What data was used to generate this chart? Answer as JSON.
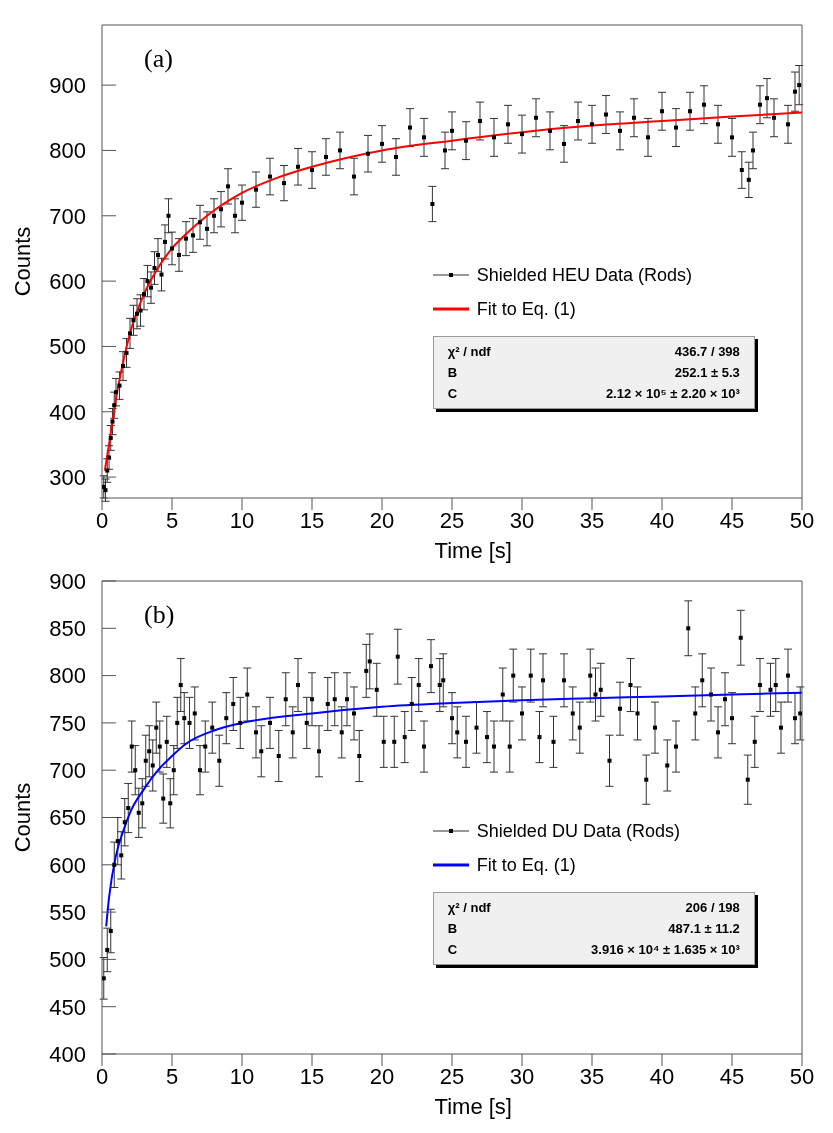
{
  "chart_data": [
    {
      "type": "scatter",
      "xlabel": "Time [s]",
      "ylabel": "Counts",
      "xlim": [
        0,
        50
      ],
      "ylim": [
        268,
        992
      ],
      "xticks": [
        0,
        5,
        10,
        15,
        20,
        25,
        30,
        35,
        40,
        45,
        50
      ],
      "yticks": [
        300,
        400,
        500,
        600,
        700,
        800,
        900
      ],
      "legend": "right",
      "marker": "square",
      "line_style": "solid",
      "annotations": [
        "(a)",
        "χ² / ndf",
        "436.7 / 398",
        "B",
        "252.1 ± 5.3",
        "C",
        "2.12 × 10⁵ ± 2.20 × 10³"
      ],
      "series": [
        {
          "name": "Shielded HEU Data (Rods)",
          "color": "#000000",
          "x": [
            0.125,
            0.25,
            0.375,
            0.5,
            0.625,
            0.75,
            0.875,
            1,
            1.25,
            1.5,
            1.75,
            2,
            2.25,
            2.5,
            2.75,
            3,
            3.25,
            3.5,
            3.75,
            4,
            4.25,
            4.5,
            4.75,
            5,
            5.5,
            6,
            6.5,
            7,
            7.5,
            8,
            8.5,
            9,
            9.5,
            10,
            11,
            12,
            13,
            14,
            15,
            16,
            17,
            18,
            19,
            20,
            21,
            22,
            23,
            23.6,
            24.5,
            25,
            26,
            27,
            28,
            29,
            30,
            31,
            32,
            33,
            34,
            35,
            36,
            37,
            38,
            39,
            40,
            41,
            42,
            43,
            44,
            45,
            45.7,
            46.2,
            46.5,
            47,
            47.5,
            48,
            49,
            49.5,
            49.8
          ],
          "values": [
            285,
            280,
            310,
            330,
            360,
            385,
            410,
            430,
            440,
            470,
            490,
            520,
            540,
            550,
            555,
            580,
            600,
            590,
            620,
            640,
            610,
            660,
            700,
            650,
            640,
            665,
            670,
            690,
            680,
            700,
            710,
            745,
            700,
            720,
            740,
            760,
            750,
            775,
            770,
            790,
            800,
            760,
            795,
            810,
            790,
            835,
            820,
            718,
            800,
            830,
            815,
            845,
            820,
            840,
            825,
            850,
            830,
            810,
            845,
            840,
            855,
            830,
            850,
            820,
            860,
            835,
            860,
            870,
            840,
            820,
            770,
            755,
            800,
            870,
            880,
            850,
            840,
            890,
            900
          ],
          "errors": [
            17,
            17,
            18,
            18,
            19,
            20,
            20,
            21,
            21,
            22,
            22,
            23,
            23,
            23,
            24,
            24,
            24,
            24,
            25,
            25,
            25,
            26,
            26,
            25,
            25,
            26,
            26,
            26,
            26,
            26,
            27,
            27,
            26,
            27,
            27,
            28,
            27,
            28,
            28,
            28,
            28,
            28,
            28,
            28,
            28,
            29,
            29,
            27,
            28,
            29,
            29,
            29,
            29,
            29,
            29,
            29,
            29,
            28,
            29,
            29,
            29,
            29,
            29,
            29,
            29,
            29,
            29,
            29,
            29,
            29,
            28,
            27,
            28,
            29,
            30,
            29,
            29,
            30,
            30
          ]
        },
        {
          "type": "line",
          "marker": "none",
          "name": "Fit to Eq. (1)",
          "color": "#ff0000",
          "x": [
            0.2,
            0.5,
            1,
            1.5,
            2,
            3,
            4,
            5,
            6,
            7.5,
            10,
            12.5,
            15,
            20,
            25,
            30,
            35,
            40,
            45,
            50
          ],
          "values": [
            310,
            350,
            420,
            475,
            520,
            580,
            620,
            650,
            672,
            700,
            735,
            758,
            775,
            800,
            815,
            828,
            838,
            845,
            852,
            858
          ]
        }
      ]
    },
    {
      "type": "scatter",
      "xlabel": "Time [s]",
      "ylabel": "Counts",
      "xlim": [
        0,
        50
      ],
      "ylim": [
        400,
        900
      ],
      "xticks": [
        0,
        5,
        10,
        15,
        20,
        25,
        30,
        35,
        40,
        45,
        50
      ],
      "yticks": [
        400,
        450,
        500,
        550,
        600,
        650,
        700,
        750,
        800,
        850,
        900
      ],
      "legend": "right",
      "marker": "square",
      "line_style": "solid",
      "annotations": [
        "(b)",
        "χ² / ndf",
        "206 / 198",
        "B",
        "487.1 ± 11.2",
        "C",
        "3.916 × 10⁴ ± 1.635 × 10³"
      ],
      "series": [
        {
          "name": "Shielded DU Data (Rods)",
          "color": "#000000",
          "x": [
            0.125,
            0.375,
            0.625,
            0.875,
            1.125,
            1.375,
            1.625,
            1.875,
            2.125,
            2.375,
            2.625,
            2.875,
            3.125,
            3.375,
            3.625,
            3.875,
            4.125,
            4.375,
            4.625,
            4.875,
            5.125,
            5.375,
            5.625,
            5.875,
            6.25,
            6.625,
            7,
            7.375,
            7.875,
            8.375,
            8.875,
            9.375,
            9.875,
            10.375,
            11,
            11.375,
            12,
            12.625,
            13.125,
            13.625,
            14,
            14.625,
            15,
            15.5,
            16.125,
            16.625,
            17.125,
            17.5,
            18,
            18.375,
            18.875,
            19.125,
            19.625,
            20.125,
            20.875,
            21.125,
            21.625,
            22.125,
            22.625,
            23,
            23.5,
            24.125,
            24.375,
            25,
            25.375,
            26,
            26.75,
            27.5,
            28,
            28.625,
            29.125,
            29.375,
            30,
            30.625,
            31.25,
            31.5,
            32.25,
            33,
            33.625,
            34.125,
            34.875,
            35.25,
            35.625,
            36.25,
            37,
            37.75,
            38.25,
            38.875,
            39.5,
            40.375,
            41,
            41.875,
            42.375,
            42.875,
            43.5,
            44,
            44.5,
            45,
            45.625,
            46.125,
            46.625,
            47,
            47.75,
            48.125,
            48.5,
            49,
            49.5,
            49.875
          ],
          "values": [
            480,
            510,
            530,
            600,
            625,
            610,
            645,
            660,
            725,
            700,
            655,
            665,
            710,
            720,
            705,
            745,
            725,
            670,
            730,
            665,
            700,
            750,
            790,
            755,
            750,
            760,
            700,
            725,
            745,
            710,
            755,
            770,
            750,
            780,
            740,
            720,
            750,
            715,
            775,
            740,
            790,
            750,
            775,
            720,
            770,
            775,
            740,
            775,
            760,
            715,
            805,
            815,
            785,
            730,
            730,
            820,
            735,
            770,
            790,
            725,
            810,
            790,
            795,
            755,
            740,
            730,
            745,
            735,
            725,
            780,
            725,
            800,
            760,
            800,
            735,
            795,
            730,
            795,
            760,
            745,
            800,
            780,
            785,
            710,
            765,
            790,
            760,
            690,
            745,
            705,
            725,
            850,
            760,
            795,
            780,
            740,
            775,
            755,
            840,
            690,
            730,
            790,
            785,
            790,
            745,
            800,
            755,
            760
          ],
          "errors": [
            22,
            23,
            23,
            24,
            25,
            25,
            25,
            26,
            27,
            26,
            26,
            26,
            27,
            27,
            27,
            27,
            27,
            26,
            27,
            26,
            26,
            27,
            28,
            27,
            27,
            28,
            26,
            27,
            27,
            27,
            27,
            28,
            27,
            28,
            27,
            27,
            27,
            27,
            28,
            27,
            28,
            27,
            28,
            27,
            28,
            28,
            27,
            28,
            28,
            27,
            28,
            29,
            28,
            27,
            27,
            29,
            27,
            28,
            28,
            27,
            28,
            28,
            28,
            27,
            27,
            27,
            27,
            27,
            27,
            28,
            27,
            28,
            28,
            28,
            27,
            28,
            27,
            28,
            28,
            27,
            28,
            28,
            28,
            27,
            28,
            28,
            28,
            26,
            27,
            27,
            27,
            29,
            28,
            28,
            28,
            27,
            28,
            27,
            29,
            26,
            27,
            28,
            28,
            28,
            27,
            28,
            27,
            28
          ]
        },
        {
          "type": "line",
          "marker": "none",
          "name": "Fit to Eq. (1)",
          "color": "#0000ff",
          "x": [
            0.3,
            0.5,
            1,
            1.5,
            2,
            3,
            4,
            5,
            6,
            8,
            10,
            15,
            20,
            25,
            30,
            35,
            40,
            45,
            50
          ],
          "values": [
            535,
            565,
            610,
            635,
            655,
            680,
            700,
            715,
            728,
            742,
            750,
            760,
            767,
            771,
            774,
            776,
            778,
            780,
            782
          ]
        }
      ]
    }
  ]
}
